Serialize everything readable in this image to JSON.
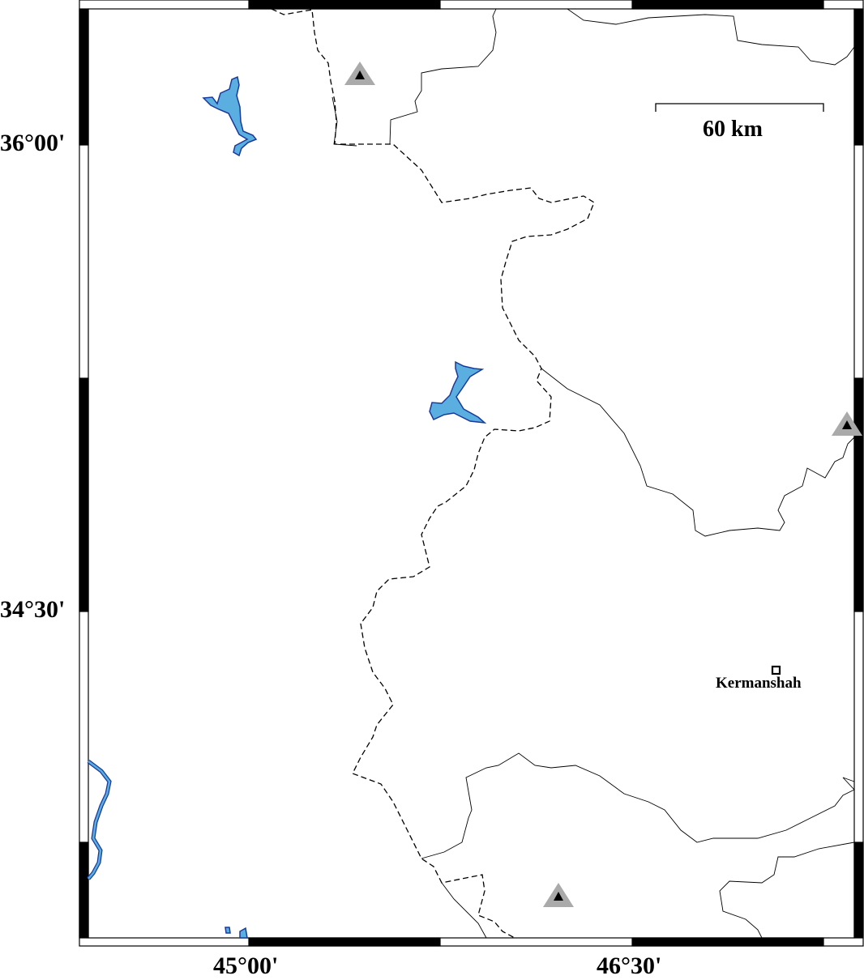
{
  "map": {
    "latitude_labels": [
      "36°00'",
      "34°30'"
    ],
    "longitude_labels": [
      "45°00'",
      "46°30'"
    ],
    "scale_bar": {
      "label": "60 km"
    },
    "cities": [
      {
        "name": "Kermanshah",
        "marker": "square"
      }
    ],
    "station_markers": [
      {
        "icon": "triangle-station-icon"
      },
      {
        "icon": "triangle-station-icon"
      },
      {
        "icon": "triangle-station-icon"
      }
    ],
    "colors": {
      "water": "#5aaee0",
      "water_outline": "#1a3a9a",
      "marker_outer": "#aaaaaa",
      "marker_inner": "#000000",
      "frame": "#000000"
    }
  }
}
